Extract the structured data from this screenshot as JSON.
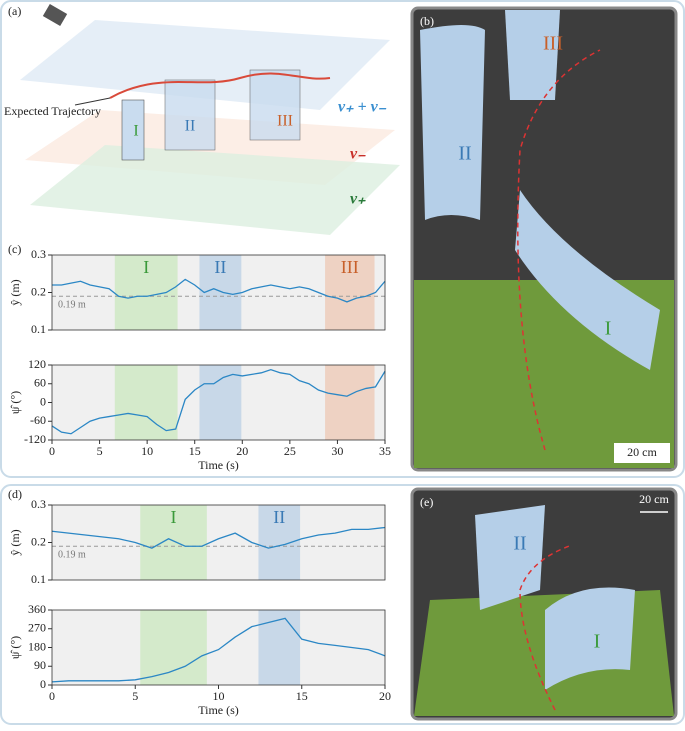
{
  "chart_data": [
    {
      "type": "line",
      "panel": "(c)",
      "ylabel": "ŷ (m)",
      "xlim": [
        0,
        35
      ],
      "ylim": [
        0.1,
        0.3
      ],
      "yticks": [
        0.1,
        0.2,
        0.3
      ],
      "x": [
        0,
        1,
        2,
        3,
        4,
        5,
        6,
        7,
        8,
        9,
        10,
        11,
        12,
        13,
        14,
        15,
        16,
        17,
        18,
        19,
        20,
        21,
        22,
        23,
        24,
        25,
        26,
        27,
        28,
        29,
        30,
        31,
        32,
        33,
        34,
        35
      ],
      "series": [
        {
          "color": "#2b87c5",
          "values": [
            0.22,
            0.22,
            0.225,
            0.23,
            0.22,
            0.215,
            0.21,
            0.19,
            0.185,
            0.19,
            0.19,
            0.195,
            0.2,
            0.215,
            0.235,
            0.22,
            0.2,
            0.21,
            0.2,
            0.195,
            0.2,
            0.21,
            0.215,
            0.22,
            0.215,
            0.21,
            0.215,
            0.21,
            0.2,
            0.19,
            0.185,
            0.175,
            0.185,
            0.19,
            0.2,
            0.23
          ]
        }
      ],
      "hline": {
        "value": 0.19,
        "label": "0.19 m"
      },
      "regions": [
        {
          "label": "I",
          "start": 6.6,
          "end": 13.2,
          "color": "#d4eacb",
          "text_color": "#3a9a3a"
        },
        {
          "label": "II",
          "start": 15.5,
          "end": 19.9,
          "color": "#c8d8e8",
          "text_color": "#3a7ab5"
        },
        {
          "label": "III",
          "start": 28.7,
          "end": 33.9,
          "color": "#eed2c3",
          "text_color": "#c8602a"
        }
      ]
    },
    {
      "type": "line",
      "ylabel": "ψ̂ (°)",
      "xlabel": "Time (s)",
      "xlim": [
        0,
        35
      ],
      "xticks": [
        0,
        5,
        10,
        15,
        20,
        25,
        30,
        35
      ],
      "ylim": [
        -120,
        120
      ],
      "yticks": [
        -120,
        -60,
        0,
        60,
        120
      ],
      "x": [
        0,
        1,
        2,
        3,
        4,
        5,
        6,
        7,
        8,
        9,
        10,
        11,
        12,
        13,
        14,
        15,
        16,
        17,
        18,
        19,
        20,
        21,
        22,
        23,
        24,
        25,
        26,
        27,
        28,
        29,
        30,
        31,
        32,
        33,
        34,
        35
      ],
      "series": [
        {
          "color": "#2b87c5",
          "values": [
            -75,
            -95,
            -100,
            -80,
            -60,
            -50,
            -45,
            -40,
            -35,
            -40,
            -45,
            -70,
            -90,
            -85,
            10,
            40,
            60,
            60,
            80,
            90,
            85,
            90,
            95,
            105,
            95,
            90,
            70,
            60,
            40,
            30,
            25,
            20,
            35,
            45,
            50,
            100
          ]
        }
      ],
      "regions": [
        {
          "start": 6.6,
          "end": 13.2,
          "color": "#d4eacb"
        },
        {
          "start": 15.5,
          "end": 19.9,
          "color": "#c8d8e8"
        },
        {
          "start": 28.7,
          "end": 33.9,
          "color": "#eed2c3"
        }
      ]
    },
    {
      "type": "line",
      "panel": "(d)",
      "ylabel": "ŷ (m)",
      "xlim": [
        0,
        20
      ],
      "ylim": [
        0.1,
        0.3
      ],
      "yticks": [
        0.1,
        0.2,
        0.3
      ],
      "x": [
        0,
        1,
        2,
        3,
        4,
        5,
        6,
        7,
        8,
        9,
        10,
        11,
        12,
        13,
        14,
        15,
        16,
        17,
        18,
        19,
        20
      ],
      "series": [
        {
          "color": "#2b87c5",
          "values": [
            0.23,
            0.225,
            0.22,
            0.215,
            0.21,
            0.2,
            0.185,
            0.21,
            0.19,
            0.19,
            0.21,
            0.225,
            0.2,
            0.185,
            0.195,
            0.21,
            0.22,
            0.225,
            0.235,
            0.235,
            0.24
          ]
        }
      ],
      "hline": {
        "value": 0.19,
        "label": "0.19 m"
      },
      "regions": [
        {
          "label": "I",
          "start": 5.3,
          "end": 9.3,
          "color": "#d4eacb",
          "text_color": "#3a9a3a"
        },
        {
          "label": "II",
          "start": 12.4,
          "end": 14.9,
          "color": "#c8d8e8",
          "text_color": "#3a7ab5"
        }
      ]
    },
    {
      "type": "line",
      "ylabel": "ψ̂ (°)",
      "xlabel": "Time (s)",
      "xlim": [
        0,
        20
      ],
      "xticks": [
        0,
        5,
        10,
        15,
        20
      ],
      "ylim": [
        0,
        360
      ],
      "yticks": [
        0,
        90,
        180,
        270,
        360
      ],
      "x": [
        0,
        1,
        2,
        3,
        4,
        5,
        6,
        7,
        8,
        9,
        10,
        11,
        12,
        13,
        14,
        15,
        16,
        17,
        18,
        19,
        20
      ],
      "series": [
        {
          "color": "#2b87c5",
          "values": [
            15,
            20,
            20,
            20,
            20,
            25,
            40,
            60,
            90,
            140,
            170,
            230,
            280,
            300,
            320,
            220,
            200,
            190,
            180,
            170,
            140
          ]
        }
      ],
      "regions": [
        {
          "start": 5.3,
          "end": 9.3,
          "color": "#d4eacb"
        },
        {
          "start": 12.4,
          "end": 14.9,
          "color": "#c8d8e8"
        }
      ]
    }
  ],
  "figure": {
    "a": {
      "panel": "(a)",
      "trajectory": "Expected Trajectory",
      "obstacles": [
        "I",
        "II",
        "III"
      ],
      "sum_field": "v₊ + v₋",
      "minus_field": "v₋",
      "plus_field": "v₊"
    },
    "b": {
      "panel": "(b)",
      "obstacles": [
        "II",
        "III",
        "I"
      ],
      "scale": "20 cm"
    },
    "e": {
      "panel": "(e)",
      "obstacles": [
        "II",
        "I"
      ],
      "scale": "20 cm"
    }
  }
}
